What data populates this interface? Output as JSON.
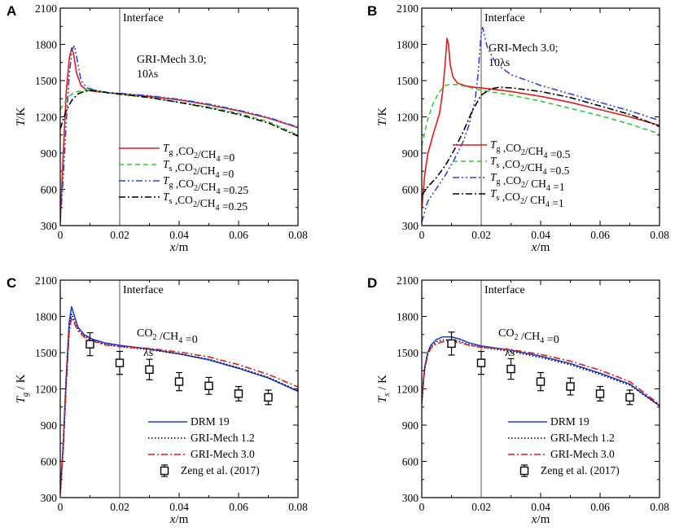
{
  "chart_data": [
    {
      "type": "line",
      "panel_label": "A",
      "interface_label": "Interface",
      "annotations": [
        "GRI-Mech 3.0;",
        "10λs"
      ],
      "xlabel": "x/m",
      "ylabel": "T/K",
      "xlim": [
        0,
        0.08
      ],
      "ylim": [
        300,
        2100
      ],
      "xticks": [
        "0",
        "0.02",
        "0.04",
        "0.06",
        "0.08"
      ],
      "yticks": [
        "300",
        "600",
        "900",
        "1200",
        "1500",
        "1800",
        "2100"
      ],
      "interface_x": 0.02,
      "legend_position": "bottom-right",
      "series": [
        {
          "name": "Tg ,CO2/CH4 =0",
          "color": "#e31a1c",
          "dash": "solid",
          "x": [
            0,
            0.001,
            0.002,
            0.003,
            0.0038,
            0.0045,
            0.0055,
            0.007,
            0.009,
            0.012,
            0.016,
            0.02,
            0.03,
            0.04,
            0.05,
            0.06,
            0.07,
            0.08
          ],
          "y": [
            330,
            900,
            1400,
            1680,
            1770,
            1720,
            1560,
            1460,
            1420,
            1410,
            1400,
            1390,
            1370,
            1340,
            1300,
            1250,
            1190,
            1110
          ]
        },
        {
          "name": "Ts ,CO2/CH4 =0",
          "color": "#33cc33",
          "dash": "dashed",
          "x": [
            0,
            0.001,
            0.002,
            0.003,
            0.004,
            0.006,
            0.008,
            0.01,
            0.012,
            0.016,
            0.02,
            0.03,
            0.04,
            0.05,
            0.06,
            0.07,
            0.08
          ],
          "y": [
            1260,
            1300,
            1340,
            1370,
            1390,
            1410,
            1420,
            1425,
            1420,
            1400,
            1385,
            1360,
            1320,
            1280,
            1230,
            1160,
            1050
          ]
        },
        {
          "name": "Tg ,CO2/CH4 =0.25",
          "color": "#3344dd",
          "dash": "dashdotdot",
          "x": [
            0,
            0.001,
            0.002,
            0.003,
            0.004,
            0.0048,
            0.0058,
            0.007,
            0.009,
            0.012,
            0.016,
            0.02,
            0.03,
            0.04,
            0.05,
            0.06,
            0.07,
            0.08
          ],
          "y": [
            330,
            700,
            1150,
            1550,
            1760,
            1790,
            1660,
            1500,
            1440,
            1420,
            1400,
            1395,
            1375,
            1345,
            1305,
            1255,
            1195,
            1115
          ]
        },
        {
          "name": "Ts ,CO2/CH4 =0.25",
          "color": "#000000",
          "dash": "dashdot",
          "x": [
            0,
            0.001,
            0.002,
            0.003,
            0.004,
            0.006,
            0.008,
            0.01,
            0.012,
            0.016,
            0.02,
            0.03,
            0.04,
            0.05,
            0.06,
            0.07,
            0.08
          ],
          "y": [
            1100,
            1180,
            1250,
            1300,
            1340,
            1390,
            1410,
            1420,
            1415,
            1400,
            1390,
            1360,
            1320,
            1275,
            1220,
            1150,
            1040
          ]
        }
      ]
    },
    {
      "type": "line",
      "panel_label": "B",
      "interface_label": "Interface",
      "annotations": [
        "GRI-Mech 3.0;",
        "10λs"
      ],
      "xlabel": "x/m",
      "ylabel": "T/K",
      "xlim": [
        0,
        0.08
      ],
      "ylim": [
        300,
        2100
      ],
      "xticks": [
        "0",
        "0.02",
        "0.04",
        "0.06",
        "0.08"
      ],
      "yticks": [
        "300",
        "600",
        "900",
        "1200",
        "1500",
        "1800",
        "2100"
      ],
      "interface_x": 0.02,
      "legend_position": "bottom-left",
      "series": [
        {
          "name": "Tg ,CO2/CH4 =0.5",
          "color": "#e31a1c",
          "dash": "solid",
          "x": [
            0,
            0.001,
            0.002,
            0.004,
            0.006,
            0.007,
            0.0078,
            0.0085,
            0.009,
            0.0095,
            0.0105,
            0.012,
            0.015,
            0.018,
            0.02,
            0.03,
            0.04,
            0.05,
            0.06,
            0.07,
            0.08
          ],
          "y": [
            430,
            720,
            890,
            1070,
            1230,
            1400,
            1620,
            1850,
            1800,
            1640,
            1530,
            1480,
            1455,
            1445,
            1440,
            1410,
            1370,
            1320,
            1260,
            1200,
            1130
          ]
        },
        {
          "name": "Ts ,CO2/CH4 =0.5",
          "color": "#33cc33",
          "dash": "dashed",
          "x": [
            0,
            0.001,
            0.002,
            0.004,
            0.006,
            0.008,
            0.01,
            0.012,
            0.015,
            0.02,
            0.03,
            0.04,
            0.05,
            0.06,
            0.07,
            0.08
          ],
          "y": [
            960,
            1070,
            1180,
            1320,
            1410,
            1460,
            1470,
            1465,
            1450,
            1420,
            1380,
            1330,
            1270,
            1210,
            1140,
            1060
          ]
        },
        {
          "name": "Tg ,CO2/ CH4 =1",
          "color": "#3344dd",
          "dash": "dashdotdot",
          "x": [
            0,
            0.002,
            0.005,
            0.008,
            0.011,
            0.014,
            0.016,
            0.018,
            0.019,
            0.0198,
            0.0205,
            0.022,
            0.025,
            0.03,
            0.04,
            0.05,
            0.06,
            0.07,
            0.08
          ],
          "y": [
            330,
            500,
            610,
            720,
            850,
            1000,
            1140,
            1350,
            1570,
            1850,
            1940,
            1780,
            1640,
            1550,
            1460,
            1390,
            1320,
            1250,
            1170
          ]
        },
        {
          "name": "Ts ,CO2/ CH4 =1",
          "color": "#000000",
          "dash": "dashdot",
          "x": [
            0,
            0.002,
            0.005,
            0.008,
            0.011,
            0.014,
            0.017,
            0.02,
            0.023,
            0.026,
            0.03,
            0.04,
            0.05,
            0.06,
            0.07,
            0.08
          ],
          "y": [
            550,
            620,
            700,
            800,
            930,
            1080,
            1250,
            1380,
            1430,
            1445,
            1440,
            1410,
            1360,
            1290,
            1220,
            1120
          ]
        }
      ]
    },
    {
      "type": "line",
      "panel_label": "C",
      "interface_label": "Interface",
      "annotations": [
        "CO2 /CH4 =0",
        "λs"
      ],
      "xlabel": "x/m",
      "ylabel": "Tg / K",
      "xlim": [
        0,
        0.08
      ],
      "ylim": [
        300,
        2100
      ],
      "xticks": [
        "0",
        "0.02",
        "0.04",
        "0.06",
        "0.08"
      ],
      "yticks": [
        "300",
        "600",
        "900",
        "1200",
        "1500",
        "1800",
        "2100"
      ],
      "interface_x": 0.02,
      "legend_position": "bottom-left",
      "series": [
        {
          "name": "DRM 19",
          "color": "#1f3fe0",
          "dash": "solid",
          "x": [
            0,
            0.001,
            0.002,
            0.003,
            0.0038,
            0.0048,
            0.006,
            0.008,
            0.011,
            0.015,
            0.02,
            0.03,
            0.04,
            0.05,
            0.06,
            0.07,
            0.08
          ],
          "y": [
            330,
            750,
            1300,
            1750,
            1880,
            1800,
            1710,
            1650,
            1610,
            1580,
            1560,
            1530,
            1490,
            1440,
            1370,
            1290,
            1180
          ]
        },
        {
          "name": "GRI-Mech 1.2",
          "color": "#000000",
          "dash": "dotted",
          "x": [
            0,
            0.001,
            0.002,
            0.003,
            0.0038,
            0.0048,
            0.006,
            0.008,
            0.011,
            0.015,
            0.02,
            0.03,
            0.04,
            0.05,
            0.06,
            0.07,
            0.08
          ],
          "y": [
            330,
            720,
            1250,
            1700,
            1820,
            1760,
            1690,
            1640,
            1600,
            1570,
            1550,
            1525,
            1490,
            1445,
            1375,
            1295,
            1185
          ]
        },
        {
          "name": "GRI-Mech 3.0",
          "color": "#e31a1c",
          "dash": "dashdot",
          "x": [
            0,
            0.001,
            0.002,
            0.003,
            0.0038,
            0.0048,
            0.006,
            0.008,
            0.011,
            0.015,
            0.02,
            0.03,
            0.04,
            0.05,
            0.06,
            0.07,
            0.08
          ],
          "y": [
            330,
            700,
            1220,
            1670,
            1790,
            1740,
            1680,
            1630,
            1595,
            1565,
            1550,
            1535,
            1505,
            1465,
            1400,
            1320,
            1215
          ]
        }
      ],
      "experiment": {
        "name": "Zeng et al. (2017)",
        "x": [
          0.01,
          0.02,
          0.03,
          0.04,
          0.05,
          0.06,
          0.07
        ],
        "y": [
          1570,
          1415,
          1360,
          1260,
          1225,
          1160,
          1130
        ],
        "err": [
          95,
          95,
          85,
          75,
          70,
          60,
          60
        ]
      }
    },
    {
      "type": "line",
      "panel_label": "D",
      "interface_label": "Interface",
      "annotations": [
        "CO2 /CH4 =0",
        "λs"
      ],
      "xlabel": "x/m",
      "ylabel": "Ts / K",
      "xlim": [
        0,
        0.08
      ],
      "ylim": [
        300,
        2100
      ],
      "xticks": [
        "0",
        "0.02",
        "0.04",
        "0.06",
        "0.08"
      ],
      "yticks": [
        "300",
        "600",
        "900",
        "1200",
        "1500",
        "1800",
        "2100"
      ],
      "interface_x": 0.02,
      "legend_position": "bottom-left",
      "series": [
        {
          "name": "DRM 19",
          "color": "#1f3fe0",
          "dash": "solid",
          "x": [
            0,
            0.0005,
            0.001,
            0.002,
            0.003,
            0.005,
            0.007,
            0.01,
            0.013,
            0.016,
            0.02,
            0.03,
            0.04,
            0.05,
            0.06,
            0.07,
            0.08
          ],
          "y": [
            1080,
            1250,
            1380,
            1500,
            1560,
            1610,
            1630,
            1630,
            1610,
            1580,
            1555,
            1520,
            1470,
            1410,
            1330,
            1240,
            1060
          ]
        },
        {
          "name": "GRI-Mech 1.2",
          "color": "#000000",
          "dash": "dotted",
          "x": [
            0,
            0.0005,
            0.001,
            0.002,
            0.003,
            0.005,
            0.007,
            0.01,
            0.013,
            0.016,
            0.02,
            0.03,
            0.04,
            0.05,
            0.06,
            0.07,
            0.08
          ],
          "y": [
            1080,
            1240,
            1370,
            1490,
            1545,
            1590,
            1605,
            1605,
            1590,
            1565,
            1545,
            1510,
            1460,
            1400,
            1320,
            1230,
            1060
          ]
        },
        {
          "name": "GRI-Mech 3.0",
          "color": "#e31a1c",
          "dash": "dashdot",
          "x": [
            0,
            0.0005,
            0.001,
            0.002,
            0.003,
            0.005,
            0.007,
            0.01,
            0.013,
            0.016,
            0.02,
            0.03,
            0.04,
            0.05,
            0.06,
            0.07,
            0.08
          ],
          "y": [
            1080,
            1230,
            1360,
            1480,
            1535,
            1575,
            1590,
            1590,
            1580,
            1560,
            1545,
            1525,
            1485,
            1430,
            1355,
            1260,
            1070
          ]
        }
      ],
      "experiment": {
        "name": "Zeng et al. (2017)",
        "x": [
          0.01,
          0.02,
          0.03,
          0.04,
          0.05,
          0.06,
          0.07
        ],
        "y": [
          1575,
          1415,
          1365,
          1260,
          1220,
          1160,
          1130
        ],
        "err": [
          95,
          95,
          85,
          75,
          70,
          60,
          60
        ]
      }
    }
  ]
}
